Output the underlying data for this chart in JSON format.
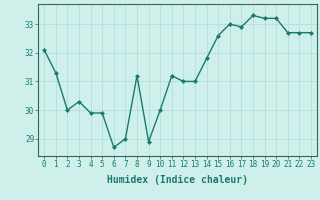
{
  "x": [
    0,
    1,
    2,
    3,
    4,
    5,
    6,
    7,
    8,
    9,
    10,
    11,
    12,
    13,
    14,
    15,
    16,
    17,
    18,
    19,
    20,
    21,
    22,
    23
  ],
  "y": [
    32.1,
    31.3,
    30.0,
    30.3,
    29.9,
    29.9,
    28.7,
    29.0,
    31.2,
    28.9,
    30.0,
    31.2,
    31.0,
    31.0,
    31.8,
    32.6,
    33.0,
    32.9,
    33.3,
    33.2,
    33.2,
    32.7,
    32.7,
    32.7
  ],
  "line_color": "#1a7a6e",
  "marker": "D",
  "markersize": 2.0,
  "linewidth": 1.0,
  "bg_color": "#cff0ea",
  "grid_color": "#aaddda",
  "xlabel": "Humidex (Indice chaleur)",
  "xlabel_fontsize": 7,
  "yticks": [
    29,
    30,
    31,
    32,
    33
  ],
  "xticks": [
    0,
    1,
    2,
    3,
    4,
    5,
    6,
    7,
    8,
    9,
    10,
    11,
    12,
    13,
    14,
    15,
    16,
    17,
    18,
    19,
    20,
    21,
    22,
    23
  ],
  "ylim": [
    28.4,
    33.7
  ],
  "xlim": [
    -0.5,
    23.5
  ],
  "tick_fontsize": 5.5,
  "spine_color": "#336655"
}
